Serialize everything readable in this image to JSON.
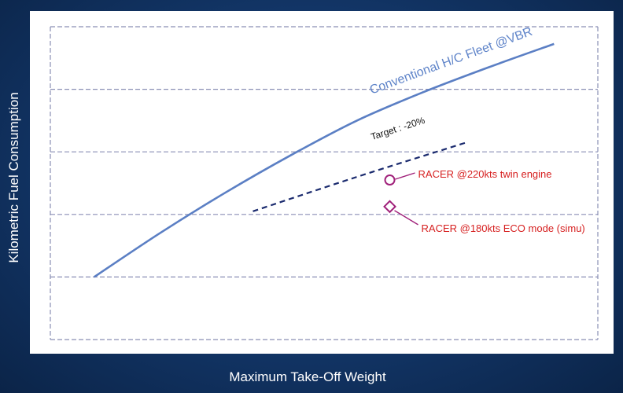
{
  "chart_data": {
    "type": "line",
    "title": "",
    "xlabel": "Maximum Take-Off Weight",
    "ylabel": "Kilometric Fuel Consumption",
    "xlim": [
      0,
      100
    ],
    "ylim": [
      0,
      100
    ],
    "grid": true,
    "series": [
      {
        "name": "Conventional H/C Fleet @VBR",
        "style": "solid",
        "color": "#5b7fc4",
        "points": [
          [
            8,
            20
          ],
          [
            20,
            34
          ],
          [
            32,
            47
          ],
          [
            44,
            59
          ],
          [
            56,
            70
          ],
          [
            68,
            79
          ],
          [
            80,
            87
          ],
          [
            92,
            94.5
          ]
        ]
      },
      {
        "name": "Target : -20%",
        "style": "dashed",
        "color": "#1a2a6e",
        "points": [
          [
            37,
            41
          ],
          [
            56,
            52
          ],
          [
            76,
            63
          ]
        ]
      }
    ],
    "markers": [
      {
        "label": "RACER @220kts twin engine",
        "shape": "circle",
        "color": "#a0207a",
        "x": 62,
        "y": 51
      },
      {
        "label": "RACER @180kts ECO mode (simu)",
        "shape": "diamond",
        "color": "#a0207a",
        "x": 62,
        "y": 42.5
      }
    ]
  }
}
